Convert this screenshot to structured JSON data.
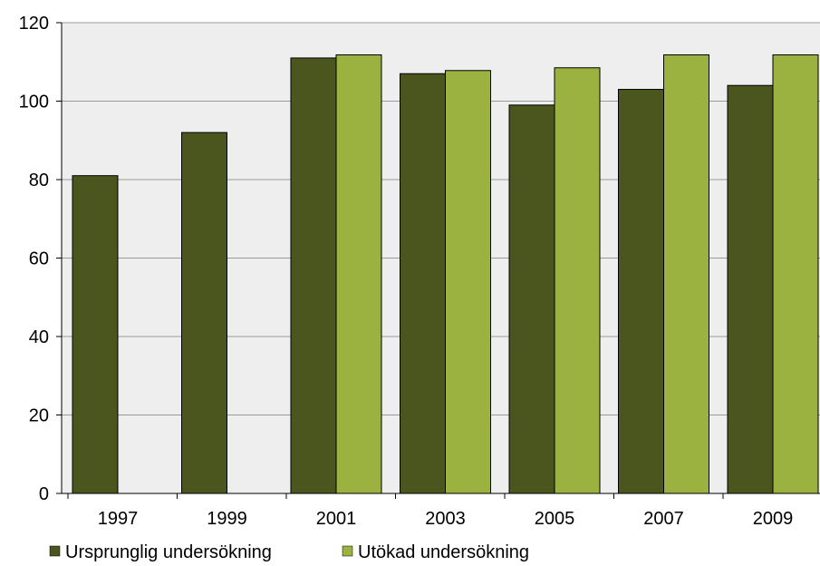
{
  "chart_data": {
    "type": "bar",
    "title": "",
    "xlabel": "",
    "ylabel": "",
    "categories": [
      "1997",
      "1999",
      "2001",
      "2003",
      "2005",
      "2007",
      "2009"
    ],
    "series": [
      {
        "name": "Ursprunglig undersökning",
        "color": "#4b561e",
        "values": [
          81,
          92,
          111,
          107,
          99,
          103,
          104
        ]
      },
      {
        "name": "Utökad undersökning",
        "color": "#9bb240",
        "values": [
          null,
          null,
          111.8,
          107.8,
          108.5,
          111.8,
          111.8
        ]
      }
    ],
    "ylim": [
      0,
      120
    ],
    "yticks": [
      0,
      20,
      40,
      60,
      80,
      100,
      120
    ],
    "grid": true,
    "plot_background": "#eeeeee",
    "legend_position": "bottom-left"
  }
}
